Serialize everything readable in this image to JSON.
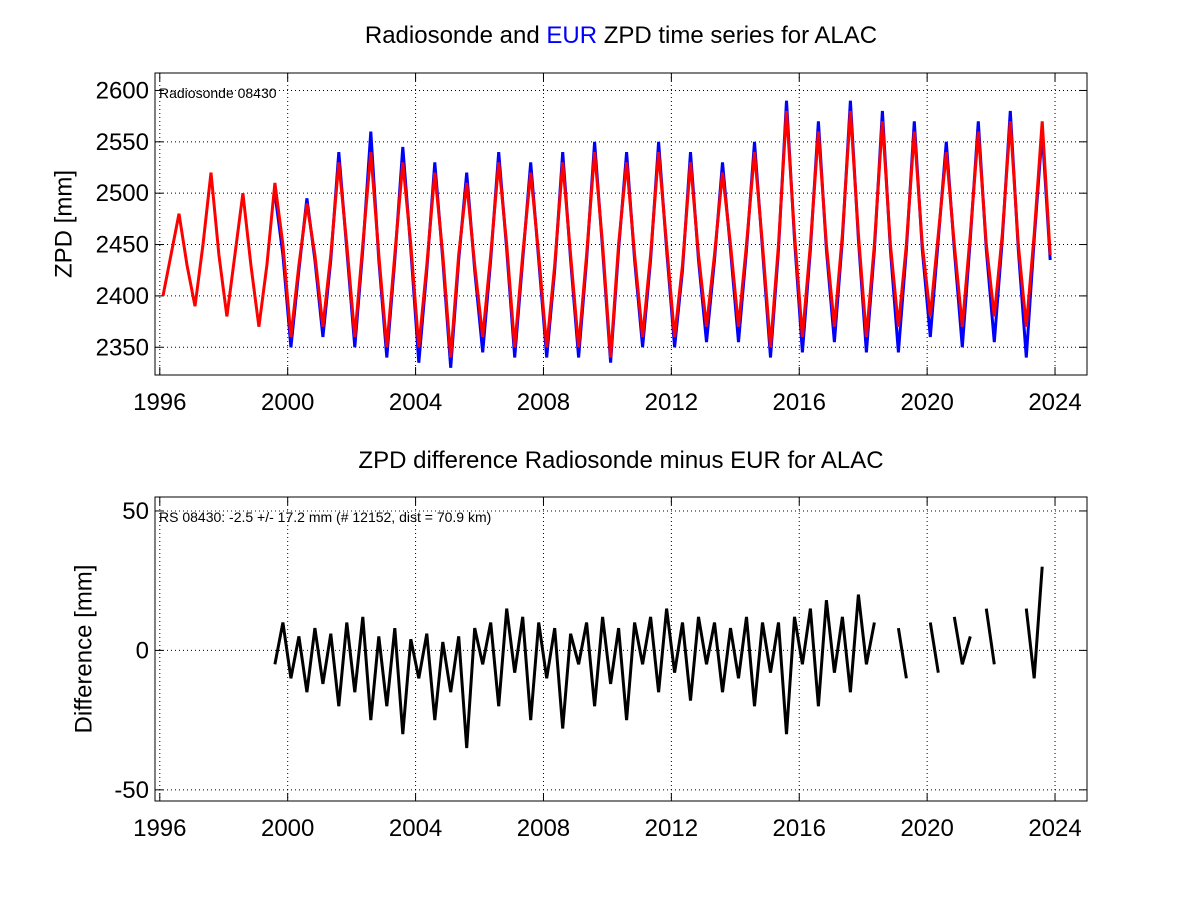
{
  "chart_data": [
    {
      "type": "line",
      "title": [
        "Radiosonde and ",
        "EUR",
        " ZPD time series for ALAC"
      ],
      "title_colors": [
        "#000000",
        "#0000ff",
        "#000000"
      ],
      "ylabel": "ZPD [mm]",
      "annotation": "Radiosonde 08430",
      "annotation_color": "#ff0000",
      "xlim": [
        1995.85,
        2025
      ],
      "ylim": [
        2323,
        2617
      ],
      "xticks": [
        1996,
        2000,
        2004,
        2008,
        2012,
        2016,
        2020,
        2024
      ],
      "yticks": [
        2350,
        2400,
        2450,
        2500,
        2550,
        2600
      ],
      "grid": true,
      "x": [
        1996.1,
        1996.35,
        1996.6,
        1996.85,
        1997.1,
        1997.35,
        1997.6,
        1997.85,
        1998.1,
        1998.35,
        1998.6,
        1998.85,
        1999.1,
        1999.35,
        1999.6,
        1999.85,
        2000.1,
        2000.35,
        2000.6,
        2000.85,
        2001.1,
        2001.35,
        2001.6,
        2001.85,
        2002.1,
        2002.35,
        2002.6,
        2002.85,
        2003.1,
        2003.35,
        2003.6,
        2003.85,
        2004.1,
        2004.35,
        2004.6,
        2004.85,
        2005.1,
        2005.35,
        2005.6,
        2005.85,
        2006.1,
        2006.35,
        2006.6,
        2006.85,
        2007.1,
        2007.35,
        2007.6,
        2007.85,
        2008.1,
        2008.35,
        2008.6,
        2008.85,
        2009.1,
        2009.35,
        2009.6,
        2009.85,
        2010.1,
        2010.35,
        2010.6,
        2010.85,
        2011.1,
        2011.35,
        2011.6,
        2011.85,
        2012.1,
        2012.35,
        2012.6,
        2012.85,
        2013.1,
        2013.35,
        2013.6,
        2013.85,
        2014.1,
        2014.35,
        2014.6,
        2014.85,
        2015.1,
        2015.35,
        2015.6,
        2015.85,
        2016.1,
        2016.35,
        2016.6,
        2016.85,
        2017.1,
        2017.35,
        2017.6,
        2017.85,
        2018.1,
        2018.35,
        2018.6,
        2018.85,
        2019.1,
        2019.35,
        2019.6,
        2019.85,
        2020.1,
        2020.35,
        2020.6,
        2020.85,
        2021.1,
        2021.35,
        2021.6,
        2021.85,
        2022.1,
        2022.35,
        2022.6,
        2022.85,
        2023.1,
        2023.35,
        2023.6,
        2023.85
      ],
      "series": [
        {
          "name": "EUR",
          "color": "#0000ff",
          "values": [
            null,
            null,
            null,
            null,
            null,
            null,
            null,
            null,
            null,
            null,
            null,
            null,
            null,
            null,
            2500,
            2440,
            2350,
            2425,
            2495,
            2435,
            2360,
            2435,
            2540,
            2445,
            2350,
            2445,
            2560,
            2435,
            2340,
            2435,
            2545,
            2445,
            2335,
            2425,
            2530,
            2435,
            2330,
            2435,
            2520,
            2425,
            2345,
            2435,
            2540,
            2445,
            2340,
            2435,
            2530,
            2435,
            2340,
            2425,
            2540,
            2435,
            2340,
            2435,
            2550,
            2445,
            2335,
            2445,
            2540,
            2435,
            2350,
            2435,
            2550,
            2445,
            2350,
            2425,
            2540,
            2435,
            2355,
            2435,
            2530,
            2445,
            2355,
            2445,
            2550,
            2445,
            2340,
            2445,
            2590,
            2455,
            2345,
            2445,
            2570,
            2445,
            2355,
            2455,
            2590,
            2455,
            2345,
            2445,
            2580,
            2445,
            2345,
            2445,
            2570,
            2445,
            2360,
            2455,
            2550,
            2445,
            2350,
            2455,
            2570,
            2445,
            2355,
            2455,
            2580,
            2445,
            2340,
            2455,
            2560,
            2435
          ]
        },
        {
          "name": "Radiosonde 08430",
          "color": "#ff0000",
          "values": [
            2400,
            2440,
            2480,
            2430,
            2390,
            2450,
            2520,
            2440,
            2380,
            2440,
            2500,
            2430,
            2370,
            2430,
            2510,
            2450,
            2360,
            2430,
            2490,
            2440,
            2370,
            2440,
            2530,
            2450,
            2360,
            2450,
            2540,
            2440,
            2350,
            2440,
            2530,
            2450,
            2350,
            2430,
            2520,
            2440,
            2340,
            2440,
            2510,
            2430,
            2360,
            2440,
            2530,
            2450,
            2350,
            2440,
            2520,
            2440,
            2350,
            2430,
            2530,
            2440,
            2350,
            2440,
            2540,
            2450,
            2340,
            2450,
            2530,
            2440,
            2360,
            2440,
            2540,
            2450,
            2360,
            2430,
            2530,
            2440,
            2370,
            2440,
            2520,
            2450,
            2370,
            2450,
            2540,
            2450,
            2350,
            2450,
            2580,
            2460,
            2360,
            2450,
            2560,
            2450,
            2370,
            2460,
            2580,
            2460,
            2360,
            2450,
            2570,
            2450,
            2370,
            2450,
            2560,
            2450,
            2380,
            2460,
            2540,
            2450,
            2370,
            2460,
            2560,
            2450,
            2380,
            2460,
            2570,
            2450,
            2370,
            2460,
            2570,
            2440
          ]
        }
      ]
    },
    {
      "type": "line",
      "title": [
        "ZPD difference Radiosonde minus EUR for ALAC"
      ],
      "title_colors": [
        "#000000"
      ],
      "ylabel": "Difference [mm]",
      "annotation": "RS 08430: -2.5 +/- 17.2 mm (# 12152, dist =  70.9 km)",
      "annotation_color": "#000000",
      "xlim": [
        1995.85,
        2025
      ],
      "ylim": [
        -54,
        55
      ],
      "xticks": [
        1996,
        2000,
        2004,
        2008,
        2012,
        2016,
        2020,
        2024
      ],
      "yticks": [
        -50,
        0,
        50
      ],
      "grid": true,
      "x": [
        1996.1,
        1996.35,
        1996.6,
        1996.85,
        1997.1,
        1997.35,
        1997.6,
        1997.85,
        1998.1,
        1998.35,
        1998.6,
        1998.85,
        1999.1,
        1999.35,
        1999.6,
        1999.85,
        2000.1,
        2000.35,
        2000.6,
        2000.85,
        2001.1,
        2001.35,
        2001.6,
        2001.85,
        2002.1,
        2002.35,
        2002.6,
        2002.85,
        2003.1,
        2003.35,
        2003.6,
        2003.85,
        2004.1,
        2004.35,
        2004.6,
        2004.85,
        2005.1,
        2005.35,
        2005.6,
        2005.85,
        2006.1,
        2006.35,
        2006.6,
        2006.85,
        2007.1,
        2007.35,
        2007.6,
        2007.85,
        2008.1,
        2008.35,
        2008.6,
        2008.85,
        2009.1,
        2009.35,
        2009.6,
        2009.85,
        2010.1,
        2010.35,
        2010.6,
        2010.85,
        2011.1,
        2011.35,
        2011.6,
        2011.85,
        2012.1,
        2012.35,
        2012.6,
        2012.85,
        2013.1,
        2013.35,
        2013.6,
        2013.85,
        2014.1,
        2014.35,
        2014.6,
        2014.85,
        2015.1,
        2015.35,
        2015.6,
        2015.85,
        2016.1,
        2016.35,
        2016.6,
        2016.85,
        2017.1,
        2017.35,
        2017.6,
        2017.85,
        2018.1,
        2018.35,
        2018.6,
        2018.85,
        2019.1,
        2019.35,
        2019.6,
        2019.85,
        2020.1,
        2020.35,
        2020.6,
        2020.85,
        2021.1,
        2021.35,
        2021.6,
        2021.85,
        2022.1,
        2022.35,
        2022.6,
        2022.85,
        2023.1,
        2023.35,
        2023.6,
        2023.85
      ],
      "series": [
        {
          "name": "Difference",
          "color": "#000000",
          "values": [
            null,
            null,
            null,
            null,
            null,
            null,
            null,
            null,
            null,
            null,
            null,
            null,
            null,
            null,
            -5,
            10,
            -10,
            5,
            -15,
            8,
            -12,
            6,
            -20,
            10,
            -15,
            12,
            -25,
            5,
            -20,
            8,
            -30,
            4,
            -10,
            6,
            -25,
            3,
            -15,
            5,
            -35,
            8,
            -5,
            10,
            -20,
            15,
            -8,
            12,
            -25,
            10,
            -10,
            8,
            -28,
            6,
            -5,
            10,
            -20,
            12,
            -12,
            8,
            -25,
            10,
            -5,
            12,
            -15,
            15,
            -8,
            10,
            -18,
            12,
            -5,
            10,
            -15,
            8,
            -10,
            12,
            -20,
            10,
            -8,
            10,
            -30,
            12,
            -5,
            15,
            -20,
            18,
            -8,
            12,
            -15,
            20,
            -5,
            10,
            null,
            null,
            8,
            -10,
            null,
            null,
            10,
            -8,
            null,
            12,
            -5,
            5,
            null,
            15,
            -5,
            null,
            null,
            null,
            15,
            -10,
            30,
            null
          ]
        }
      ]
    }
  ]
}
